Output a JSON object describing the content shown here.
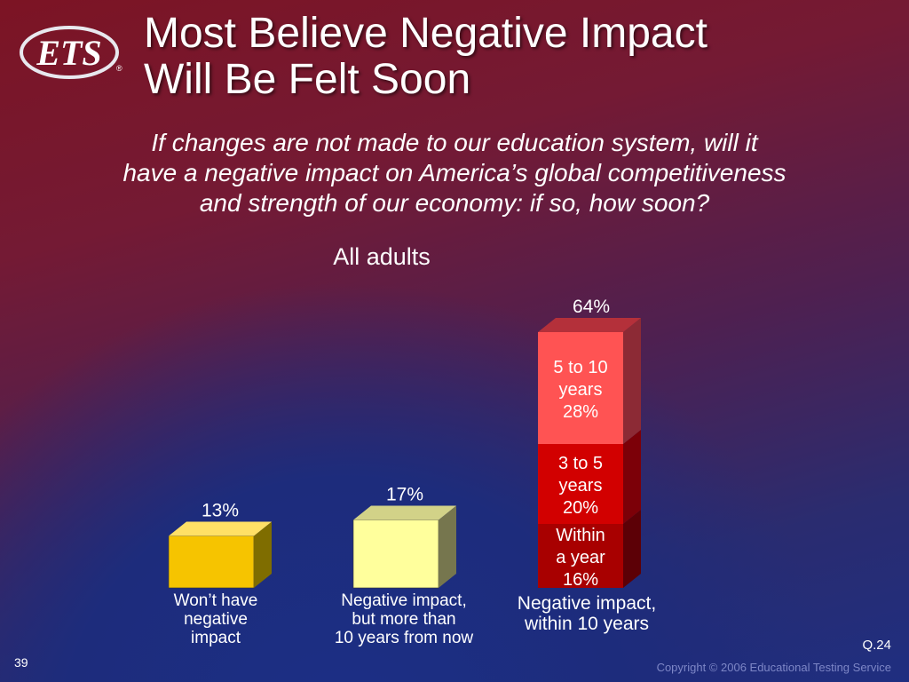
{
  "logo_text": "ETS",
  "title_line1": "Most Believe Negative Impact",
  "title_line2": "Will Be Felt Soon",
  "question_line1": "If changes are not made to our education system, will it",
  "question_line2": "have a negative impact on America’s global competitiveness",
  "question_line3": "and strength of our economy:  if so, how soon?",
  "slide_number": "39",
  "question_ref": "Q.24",
  "copyright": "Copyright © 2006 Educational Testing Service",
  "chart_data": {
    "type": "bar",
    "subtitle": "All adults",
    "ylim": [
      0,
      70
    ],
    "grid": false,
    "bars": [
      {
        "category_lines": [
          "Won’t have",
          "negative",
          "impact"
        ],
        "value": 13,
        "label": "13%",
        "color": "#f6c400",
        "side": "#7f6d00",
        "top": "#ffe066"
      },
      {
        "category_lines": [
          "Negative impact,",
          "but more than",
          "10 years from now"
        ],
        "value": 17,
        "label": "17%",
        "color": "#ffff9c",
        "side": "#76764e",
        "top": "#d2d288"
      },
      {
        "category_lines": [
          "Negative impact,",
          "within 10 years"
        ],
        "value": 64,
        "label": "64%",
        "segments": [
          {
            "name_lines": [
              "Within",
              "a year"
            ],
            "value": 16,
            "label": "16%",
            "color": "#a80000",
            "side": "#5c0006"
          },
          {
            "name_lines": [
              "3 to 5",
              "years"
            ],
            "value": 20,
            "label": "20%",
            "color": "#d20000",
            "side": "#7c0008"
          },
          {
            "name_lines": [
              "5 to 10",
              "years"
            ],
            "value": 28,
            "label": "28%",
            "color": "#ff5353",
            "side": "#8c2a35",
            "top": "#b4303a"
          }
        ]
      }
    ]
  }
}
